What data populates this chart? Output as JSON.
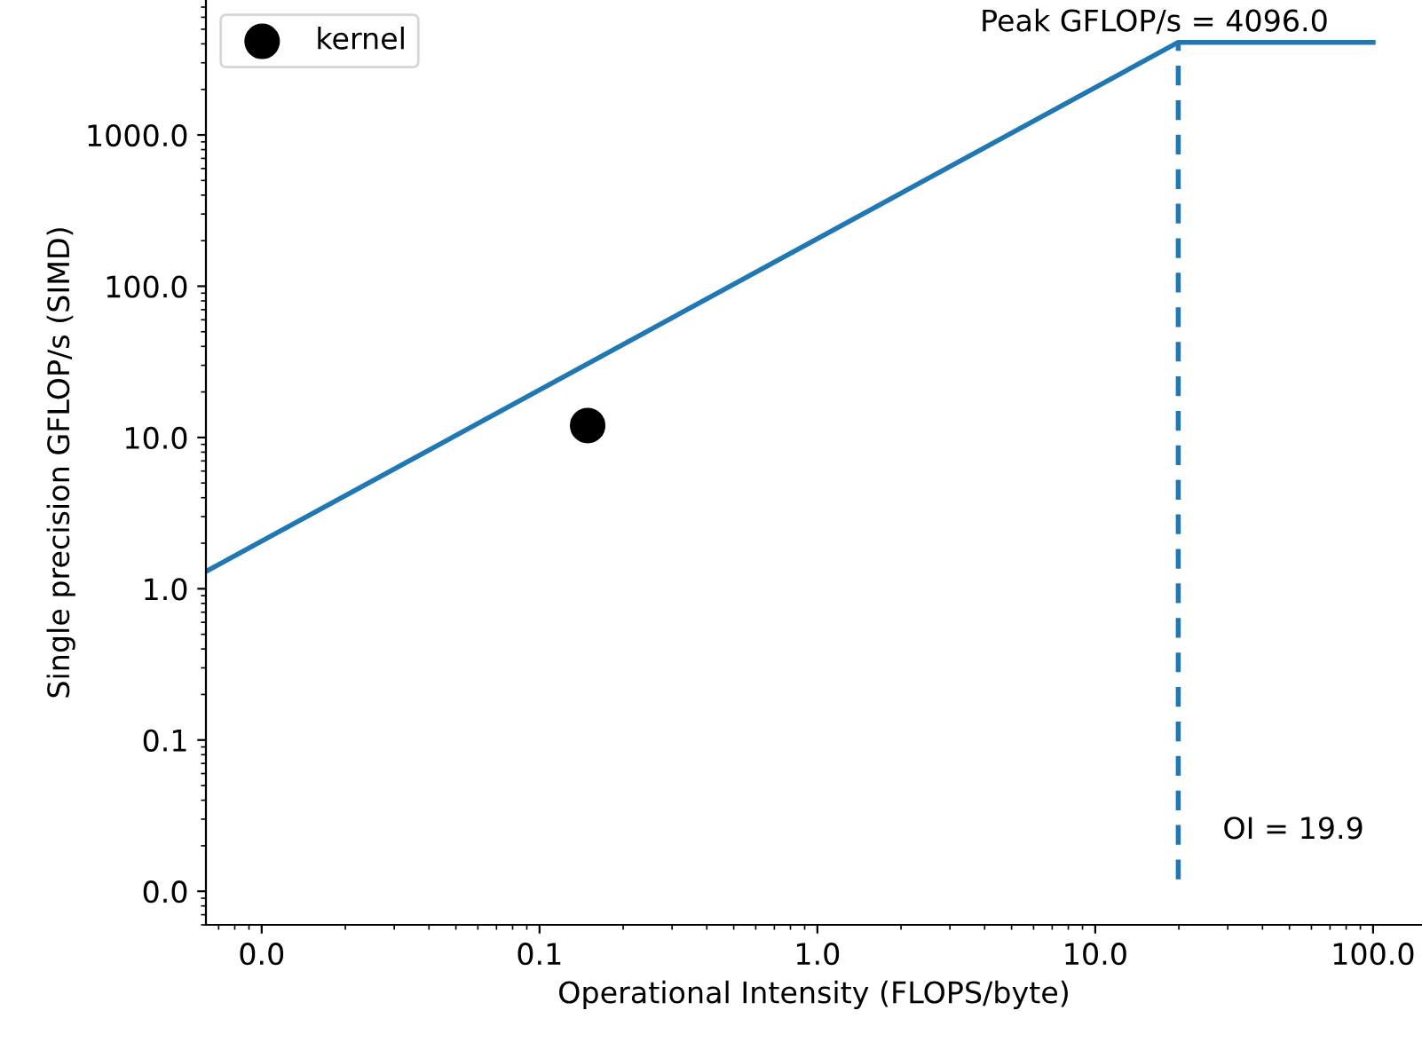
{
  "chart_data": {
    "type": "line",
    "xlabel": "Operational Intensity (FLOPS/byte)",
    "ylabel": "Single precision GFLOP/s (SIMD)",
    "log": "xy",
    "xlim": [
      0.0063,
      150
    ],
    "ylim": [
      0.006,
      7800
    ],
    "xticks": [
      {
        "value": 0.01,
        "label": "0.0"
      },
      {
        "value": 0.1,
        "label": "0.1"
      },
      {
        "value": 1,
        "label": "1.0"
      },
      {
        "value": 10,
        "label": "10.0"
      },
      {
        "value": 100,
        "label": "100.0"
      }
    ],
    "yticks": [
      {
        "value": 0.01,
        "label": "0.0"
      },
      {
        "value": 0.1,
        "label": "0.1"
      },
      {
        "value": 1,
        "label": "1.0"
      },
      {
        "value": 10,
        "label": "10.0"
      },
      {
        "value": 100,
        "label": "100.0"
      },
      {
        "value": 1000,
        "label": "1000.0"
      }
    ],
    "series": [
      {
        "color": "#1f77b4",
        "x": [
          0.0063,
          19.9,
          100
        ],
        "values": [
          1.3,
          4096,
          4096
        ],
        "line_style": "solid"
      },
      {
        "color": "#1f77b4",
        "x": [
          19.9,
          19.9
        ],
        "values": [
          0.012,
          4096
        ],
        "line_style": "dashed"
      },
      {
        "type": "scatter",
        "name": "kernel",
        "color": "#000000",
        "x": [
          0.149
        ],
        "values": [
          12.0
        ],
        "marker": "circle"
      }
    ],
    "annotations": [
      "Peak GFLOP/s = 4096.0",
      "OI = 19.9"
    ],
    "legend": "top left",
    "grid": false
  }
}
